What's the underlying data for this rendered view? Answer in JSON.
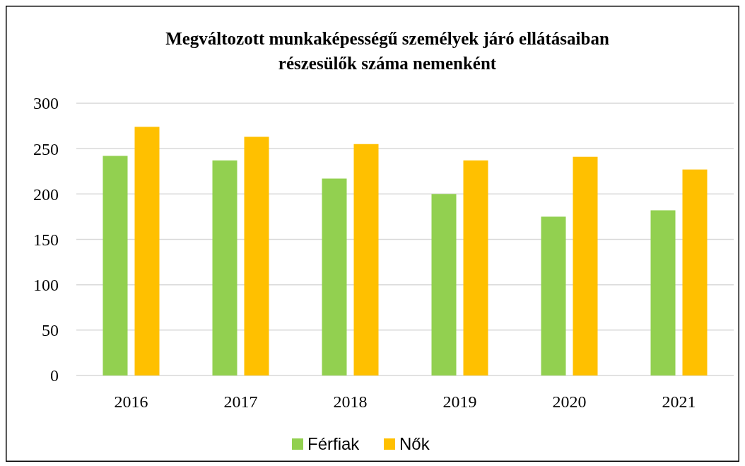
{
  "chart_data": {
    "type": "bar",
    "title": "Megváltozott munkaképességű személyek járó ellátásaiban\nrészesülők száma nemenként",
    "categories": [
      "2016",
      "2017",
      "2018",
      "2019",
      "2020",
      "2021"
    ],
    "series": [
      {
        "name": "Férfiak",
        "color": "#92d050",
        "values": [
          242,
          237,
          217,
          200,
          175,
          182
        ]
      },
      {
        "name": "Nők",
        "color": "#ffc000",
        "values": [
          274,
          263,
          255,
          237,
          241,
          227
        ]
      }
    ],
    "ylim": [
      0,
      300
    ],
    "yticks": [
      0,
      50,
      100,
      150,
      200,
      250,
      300
    ],
    "grid": "y",
    "legend": "bottom"
  }
}
